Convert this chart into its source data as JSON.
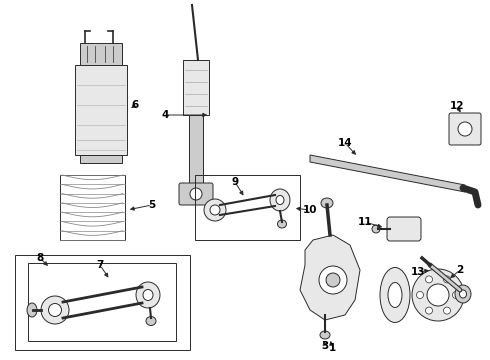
{
  "bg_color": "#ffffff",
  "line_color": "#2a2a2a",
  "gray1": "#888888",
  "gray2": "#aaaaaa",
  "gray3": "#cccccc",
  "gray4": "#e8e8e8",
  "fig_width": 4.9,
  "fig_height": 3.6,
  "dpi": 100,
  "lw": 0.7,
  "label_fs": 7.5
}
